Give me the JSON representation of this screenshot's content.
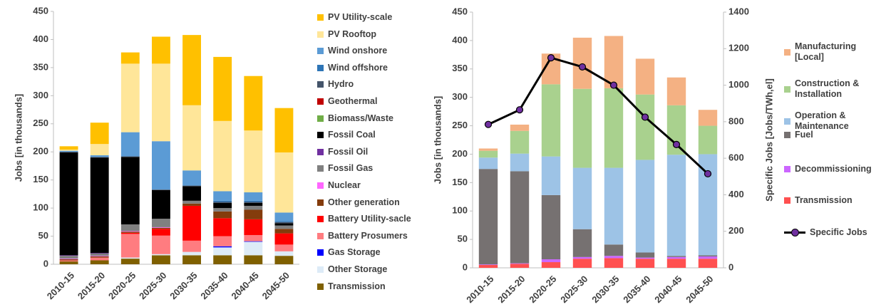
{
  "chart_data": [
    {
      "type": "bar",
      "stacked": true,
      "y_label": "Jobs [in thousands]",
      "categories": [
        "2010-15",
        "2015-20",
        "2020-25",
        "2025-30",
        "2030-35",
        "2035-40",
        "2040-45",
        "2045-50"
      ],
      "ylim": [
        0,
        450
      ],
      "yticks": [
        0,
        50,
        100,
        150,
        200,
        250,
        300,
        350,
        400,
        450
      ],
      "series": [
        {
          "name": "PV Utility-scale",
          "color": "#FFC000",
          "values": [
            6,
            38,
            20,
            48,
            125,
            114,
            97,
            79
          ]
        },
        {
          "name": "PV Rooftop",
          "color": "#FFE699",
          "values": [
            2,
            20,
            122,
            138,
            116,
            125,
            110,
            107
          ]
        },
        {
          "name": "Wind onshore",
          "color": "#5B9BD5",
          "values": [
            2,
            3,
            43,
            86,
            27,
            17,
            15,
            15
          ]
        },
        {
          "name": "Wind offshore",
          "color": "#2E75B6",
          "values": [
            0,
            0,
            0,
            0,
            0,
            2,
            2,
            2
          ]
        },
        {
          "name": "Hydro",
          "color": "#44546A",
          "values": [
            1,
            1,
            1,
            1,
            1,
            2,
            2,
            2
          ]
        },
        {
          "name": "Geothermal",
          "color": "#C00000",
          "values": [
            0,
            0,
            0,
            0,
            0,
            0,
            0,
            0
          ]
        },
        {
          "name": "Biomass/Waste",
          "color": "#70AD47",
          "values": [
            0,
            0,
            0,
            0,
            0,
            0,
            0,
            0
          ]
        },
        {
          "name": "Fossil Coal",
          "color": "#000000",
          "values": [
            183,
            170,
            120,
            51,
            26,
            9,
            5,
            4
          ]
        },
        {
          "name": "Fossil Oil",
          "color": "#7030A0",
          "values": [
            1,
            1,
            0,
            0,
            0,
            0,
            0,
            0
          ]
        },
        {
          "name": "Fossil Gas",
          "color": "#808080",
          "values": [
            5,
            4,
            12,
            15,
            5,
            6,
            7,
            6
          ]
        },
        {
          "name": "Nuclear",
          "color": "#FF66FF",
          "values": [
            1,
            1,
            1,
            1,
            0,
            0,
            0,
            0
          ]
        },
        {
          "name": "Other generation",
          "color": "#843C0C",
          "values": [
            2,
            2,
            2,
            2,
            4,
            12,
            17,
            8
          ]
        },
        {
          "name": "Battery Utility-sacle",
          "color": "#FF0000",
          "values": [
            0,
            0,
            2,
            12,
            62,
            32,
            28,
            20
          ]
        },
        {
          "name": "Battery Prosumers",
          "color": "#FF7C80",
          "values": [
            2,
            5,
            42,
            33,
            20,
            18,
            11,
            12
          ]
        },
        {
          "name": "Gas Storage",
          "color": "#0000FF",
          "values": [
            0,
            0,
            0,
            0,
            0,
            2,
            1,
            0
          ]
        },
        {
          "name": "Other Storage",
          "color": "#DDEBF7",
          "values": [
            0,
            0,
            2,
            2,
            6,
            14,
            24,
            8
          ]
        },
        {
          "name": "Transmission",
          "color": "#7F6000",
          "values": [
            5,
            7,
            10,
            16,
            16,
            16,
            16,
            15
          ]
        }
      ]
    },
    {
      "type": "bar",
      "stacked": true,
      "y_label": "Jobs [in thousands]",
      "y2_label": "Specific Jobs [Jobs/TWh,el]",
      "categories": [
        "2010-15",
        "2015-20",
        "2020-25",
        "2025-30",
        "2030-35",
        "2035-40",
        "2040-45",
        "2045-50"
      ],
      "ylim": [
        0,
        450
      ],
      "yticks": [
        0,
        50,
        100,
        150,
        200,
        250,
        300,
        350,
        400,
        450
      ],
      "y2lim": [
        0,
        1400
      ],
      "y2ticks": [
        0,
        200,
        400,
        600,
        800,
        1000,
        1200,
        1400
      ],
      "series": [
        {
          "name": "Manufacturing [Local]",
          "color": "#F4B183",
          "values": [
            4,
            11,
            54,
            90,
            92,
            63,
            49,
            28
          ]
        },
        {
          "name": "Construction & Installation",
          "color": "#A9D18E",
          "values": [
            12,
            40,
            127,
            139,
            140,
            115,
            87,
            50
          ]
        },
        {
          "name": "Operation & Maintenance",
          "color": "#9DC3E6",
          "values": [
            20,
            31,
            68,
            108,
            135,
            163,
            178,
            178
          ]
        },
        {
          "name": "Fuel",
          "color": "#767171",
          "values": [
            168,
            162,
            113,
            49,
            20,
            9,
            2,
            2
          ]
        },
        {
          "name": "Decommissioning",
          "color": "#CC66FF",
          "values": [
            1,
            1,
            5,
            3,
            4,
            2,
            3,
            4
          ]
        },
        {
          "name": "Transmission",
          "color": "#FF5050",
          "values": [
            5,
            7,
            10,
            16,
            17,
            16,
            16,
            16
          ]
        },
        {
          "name": "Specific Jobs",
          "type": "line",
          "axis": "y2",
          "color": "#000000",
          "marker_color": "#7030A0",
          "values": [
            785,
            865,
            1150,
            1100,
            1000,
            825,
            675,
            515
          ]
        }
      ]
    }
  ]
}
